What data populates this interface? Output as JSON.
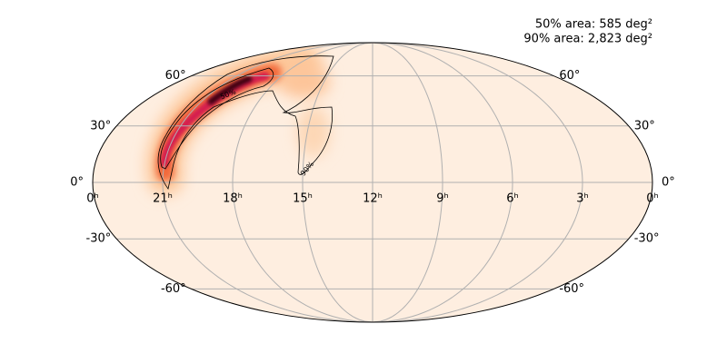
{
  "annotations": [
    "50% area: 585 deg²",
    "90% area: 2,823 deg²"
  ],
  "parallels": [
    {
      "value": 60,
      "label": "60°"
    },
    {
      "value": 30,
      "label": "30°"
    },
    {
      "value": 0,
      "label": "0°"
    },
    {
      "value": -30,
      "label": "-30°"
    },
    {
      "value": -60,
      "label": "-60°"
    }
  ],
  "meridians": [
    {
      "value": 24,
      "label": "0ʰ"
    },
    {
      "value": 21,
      "label": "21ʰ"
    },
    {
      "value": 18,
      "label": "18ʰ"
    },
    {
      "value": 15,
      "label": "15ʰ"
    },
    {
      "value": 12,
      "label": "12ʰ"
    },
    {
      "value": 9,
      "label": "9ʰ"
    },
    {
      "value": 6,
      "label": "6ʰ"
    },
    {
      "value": 3,
      "label": "3ʰ"
    },
    {
      "value": 0,
      "label": "0ʰ"
    }
  ],
  "contour_labels": [
    "50%",
    "90%"
  ]
}
